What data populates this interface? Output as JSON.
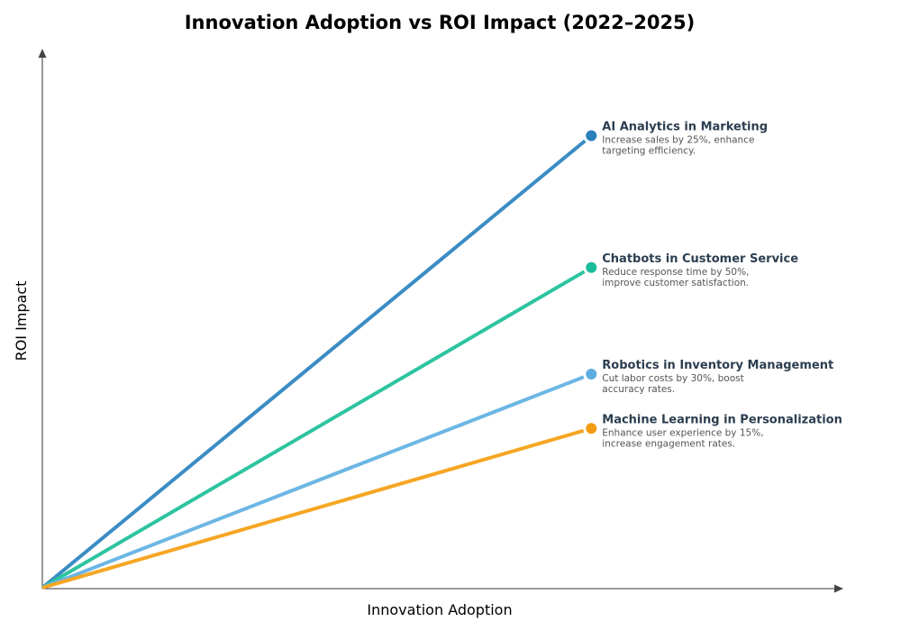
{
  "chart_data": {
    "type": "line",
    "title": "Innovation Adoption vs ROI Impact (2022–2025)",
    "xlabel": "Innovation Adoption",
    "ylabel": "ROI Impact",
    "xlim": [
      0,
      1
    ],
    "ylim": [
      0,
      1
    ],
    "grid": false,
    "ticks": false,
    "series": [
      {
        "name": "AI Analytics in Marketing",
        "description": [
          "Increase sales by 25%, enhance",
          "targeting efficiency."
        ],
        "x": [
          0,
          0.69
        ],
        "y": [
          0,
          0.84
        ],
        "color": "#3a8cc4",
        "marker_color": "#2a7fba"
      },
      {
        "name": "Chatbots in Customer Service",
        "description": [
          "Reduce response time by 50%,",
          "improve customer satisfaction."
        ],
        "x": [
          0,
          0.69
        ],
        "y": [
          0,
          0.595
        ],
        "color": "#2ec4a0",
        "marker_color": "#1abc9c"
      },
      {
        "name": "Robotics in Inventory Management",
        "description": [
          "Cut labor costs by 30%, boost",
          "accuracy rates."
        ],
        "x": [
          0,
          0.69
        ],
        "y": [
          0,
          0.397
        ],
        "color": "#6cb6e4",
        "marker_color": "#5dade2"
      },
      {
        "name": "Machine Learning in Personalization",
        "description": [
          "Enhance user experience by 15%,",
          "increase engagement rates."
        ],
        "x": [
          0,
          0.69
        ],
        "y": [
          0,
          0.296
        ],
        "color": "#f5a623",
        "marker_color": "#f39c12"
      }
    ]
  }
}
